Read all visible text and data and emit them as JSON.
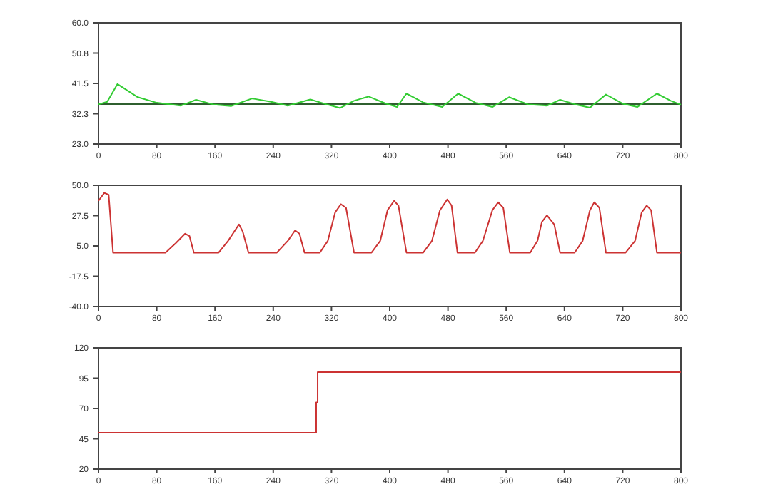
{
  "chart_data": [
    {
      "type": "line",
      "x": [
        0,
        12,
        26,
        54,
        80,
        113,
        134,
        159,
        182,
        211,
        237,
        260,
        291,
        315,
        332,
        351,
        371,
        394,
        410,
        423,
        446,
        472,
        494,
        518,
        541,
        564,
        590,
        616,
        634,
        655,
        675,
        697,
        720,
        740,
        767,
        786,
        800
      ],
      "series": [
        {
          "color": "#33cc33",
          "values": [
            35.1,
            35.9,
            41.3,
            37.3,
            35.6,
            34.7,
            36.5,
            35.0,
            34.6,
            36.9,
            35.9,
            34.7,
            36.6,
            35.0,
            34.0,
            36.2,
            37.5,
            35.4,
            34.3,
            38.4,
            35.7,
            34.3,
            38.4,
            35.6,
            34.3,
            37.3,
            35.1,
            34.7,
            36.5,
            35.1,
            34.1,
            38.1,
            35.3,
            34.3,
            38.4,
            36.2,
            35.0
          ]
        }
      ],
      "ref_lines": [
        {
          "axis": "y",
          "value": 35.2,
          "color": "#2f5f2f"
        }
      ],
      "xlim": [
        0,
        800
      ],
      "xticks": [
        0,
        80,
        160,
        240,
        320,
        400,
        480,
        560,
        640,
        720,
        800
      ],
      "ylim": [
        23,
        60
      ],
      "yticks": [
        {
          "value": 23,
          "label": "23.0"
        },
        {
          "value": 32.25,
          "label": "32.3"
        },
        {
          "value": 41.5,
          "label": "41.5"
        },
        {
          "value": 50.75,
          "label": "50.8"
        },
        {
          "value": 60,
          "label": "60.0"
        }
      ]
    },
    {
      "type": "line",
      "x": [
        0,
        8,
        14,
        20,
        92,
        106,
        119,
        125,
        131,
        165,
        178,
        193,
        198,
        206,
        245,
        260,
        270,
        276,
        283,
        304,
        315,
        325,
        333,
        340,
        351,
        375,
        387,
        397,
        406,
        412,
        423,
        446,
        458,
        469,
        479,
        485,
        493,
        517,
        528,
        541,
        549,
        556,
        565,
        593,
        603,
        609,
        616,
        626,
        634,
        654,
        665,
        675,
        681,
        688,
        697,
        724,
        737,
        746,
        753,
        759,
        767,
        800
      ],
      "series": [
        {
          "color": "#cc3333",
          "values": [
            38.5,
            44.4,
            43,
            0,
            0,
            7,
            14.1,
            12.3,
            0,
            0,
            8.8,
            21,
            15.8,
            0,
            0,
            8.8,
            16.5,
            14.1,
            0,
            0,
            8.8,
            29.8,
            36,
            33.3,
            0,
            0,
            8.8,
            31.5,
            38.5,
            35,
            0,
            0,
            8.8,
            31.5,
            39.5,
            35,
            0,
            0,
            8.8,
            31.5,
            37.4,
            33.3,
            0,
            0,
            8.8,
            22.8,
            27.7,
            21,
            0,
            0,
            8.8,
            31.5,
            37.4,
            33.3,
            0,
            0,
            8.8,
            29.8,
            35,
            31.5,
            0,
            0
          ]
        }
      ],
      "xlim": [
        0,
        800
      ],
      "xticks": [
        0,
        80,
        160,
        240,
        320,
        400,
        480,
        560,
        640,
        720,
        800
      ],
      "ylim": [
        -40,
        50
      ],
      "yticks": [
        {
          "value": -40,
          "label": "-40.0"
        },
        {
          "value": -17.5,
          "label": "-17.5"
        },
        {
          "value": 5,
          "label": "5.0"
        },
        {
          "value": 27.5,
          "label": "27.5"
        },
        {
          "value": 50,
          "label": "50.0"
        }
      ]
    },
    {
      "type": "line",
      "x": [
        0,
        299,
        299,
        301,
        301,
        800
      ],
      "series": [
        {
          "color": "#cc3333",
          "values": [
            50,
            50,
            75,
            75,
            100,
            100
          ]
        }
      ],
      "xlim": [
        0,
        800
      ],
      "xticks": [
        0,
        80,
        160,
        240,
        320,
        400,
        480,
        560,
        640,
        720,
        800
      ],
      "ylim": [
        20,
        120
      ],
      "yticks": [
        20,
        45,
        70,
        95,
        120
      ]
    }
  ]
}
